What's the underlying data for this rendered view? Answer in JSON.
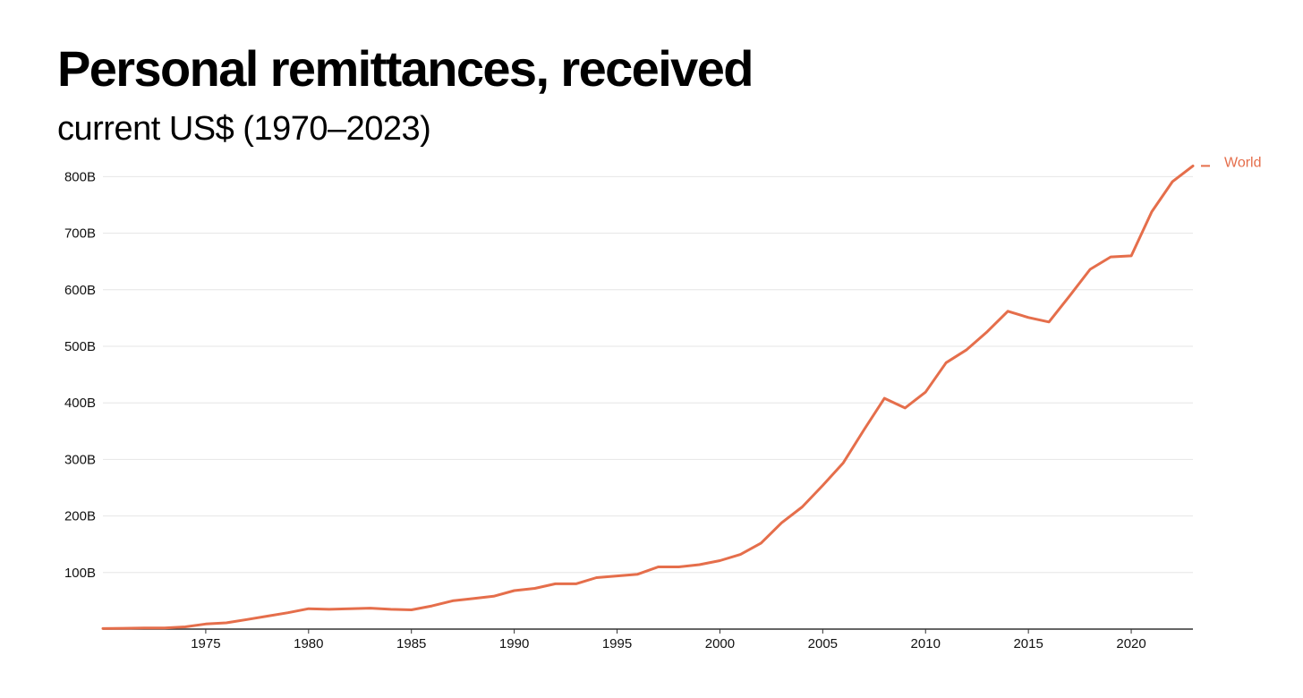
{
  "chart_data": {
    "type": "line",
    "title": "Personal remittances, received",
    "subtitle": "current US$ (1970–2023)",
    "xlim": [
      1970,
      2023
    ],
    "ylim": [
      0,
      820
    ],
    "x_ticks": [
      1975,
      1980,
      1985,
      1990,
      1995,
      2000,
      2005,
      2010,
      2015,
      2020
    ],
    "y_ticks": [
      {
        "value": 100,
        "label": "100B"
      },
      {
        "value": 200,
        "label": "200B"
      },
      {
        "value": 300,
        "label": "300B"
      },
      {
        "value": 400,
        "label": "400B"
      },
      {
        "value": 500,
        "label": "500B"
      },
      {
        "value": 600,
        "label": "600B"
      },
      {
        "value": 700,
        "label": "700B"
      },
      {
        "value": 800,
        "label": "800B"
      }
    ],
    "grid": true,
    "series": [
      {
        "name": "World",
        "color": "#e56e4b",
        "x": [
          1970,
          1971,
          1972,
          1973,
          1974,
          1975,
          1976,
          1977,
          1978,
          1979,
          1980,
          1981,
          1982,
          1983,
          1984,
          1985,
          1986,
          1987,
          1988,
          1989,
          1990,
          1991,
          1992,
          1993,
          1994,
          1995,
          1996,
          1997,
          1998,
          1999,
          2000,
          2001,
          2002,
          2003,
          2004,
          2005,
          2006,
          2007,
          2008,
          2009,
          2010,
          2011,
          2012,
          2013,
          2014,
          2015,
          2016,
          2017,
          2018,
          2019,
          2020,
          2021,
          2022,
          2023
        ],
        "values": [
          1,
          1.5,
          2,
          2,
          4,
          9,
          11,
          17,
          23,
          29,
          36,
          35,
          36,
          37,
          35,
          34,
          41,
          50,
          54,
          58,
          68,
          72,
          80,
          80,
          91,
          94,
          97,
          110,
          110,
          114,
          121,
          132,
          152,
          188,
          216,
          254,
          294,
          352,
          408,
          391,
          419,
          471,
          494,
          526,
          562,
          551,
          543,
          589,
          636,
          658,
          660,
          738,
          791,
          819
        ]
      }
    ]
  }
}
